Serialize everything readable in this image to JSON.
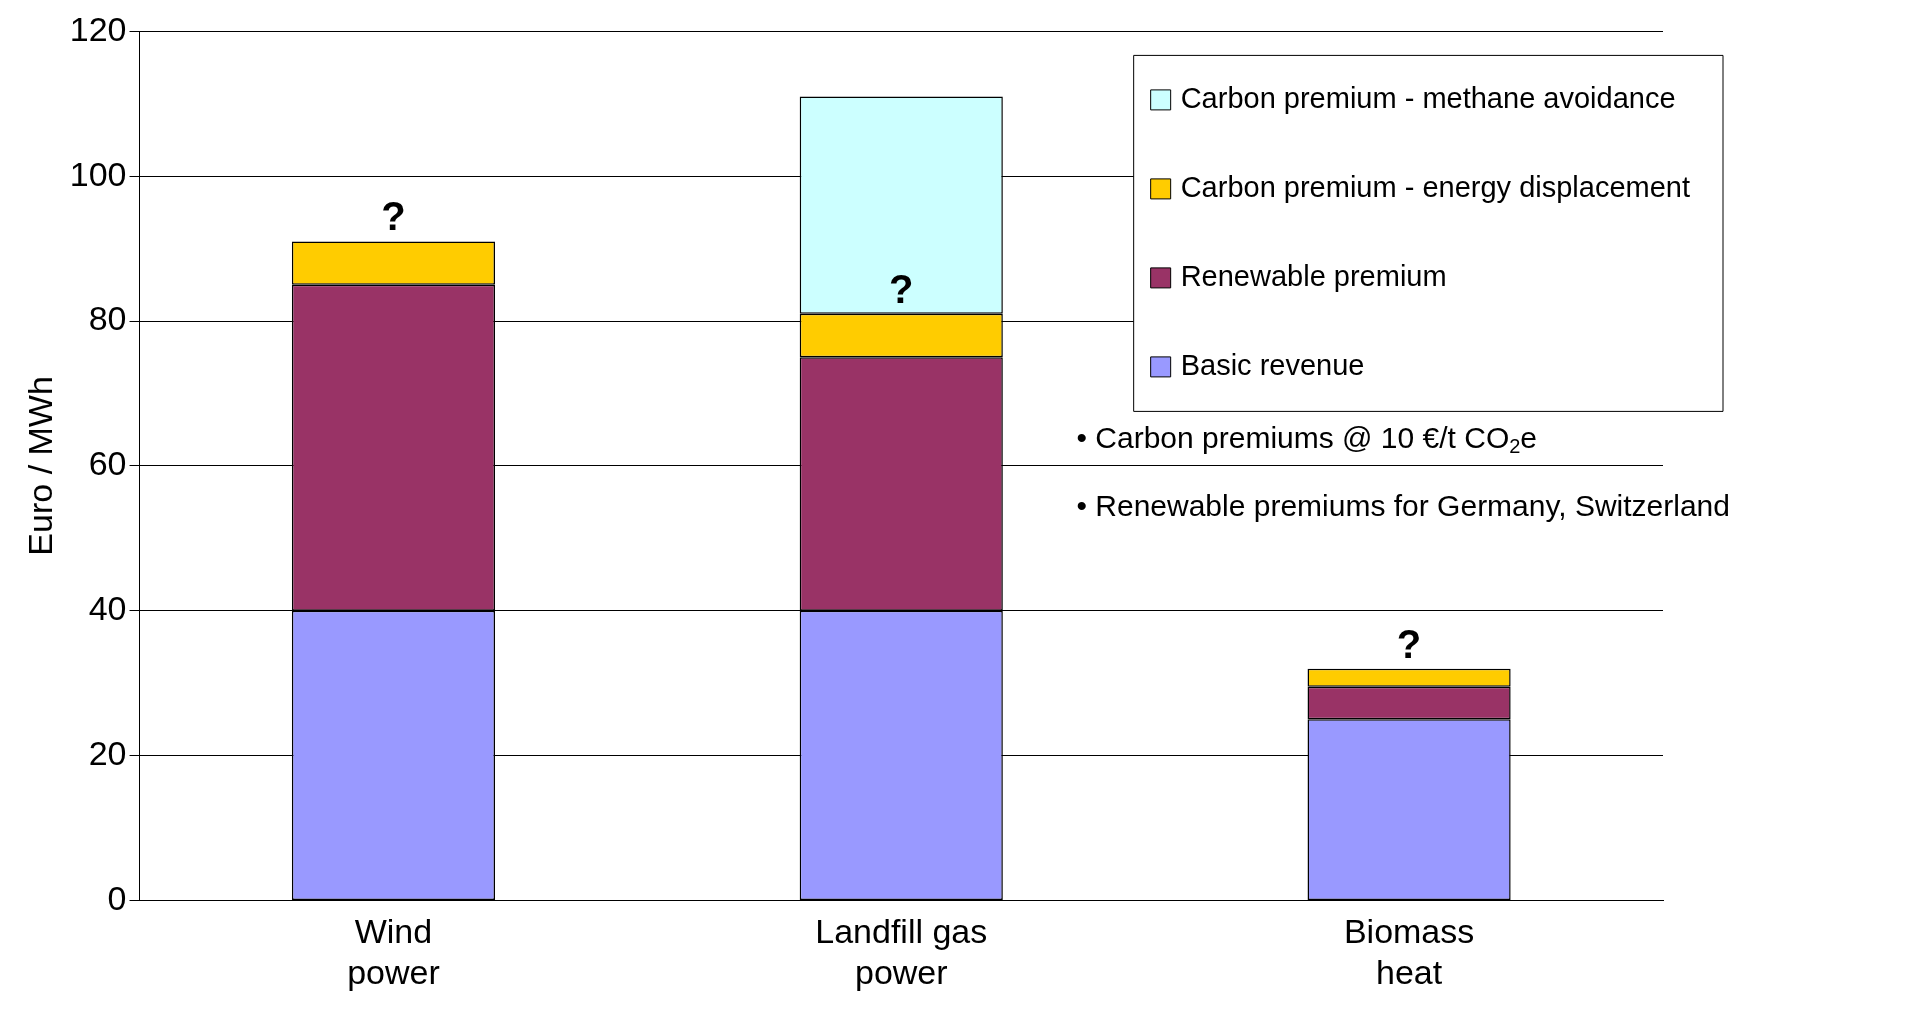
{
  "chart_data": {
    "type": "bar",
    "stacked": true,
    "ylabel": "Euro / MWh",
    "categories": [
      "Wind power",
      "Landfill gas power",
      "Biomass heat"
    ],
    "series": [
      {
        "name": "Basic revenue",
        "color": "#9999ff",
        "values": [
          40,
          40,
          25
        ]
      },
      {
        "name": "Renewable premium",
        "color": "#993366",
        "values": [
          45,
          35,
          4.5
        ]
      },
      {
        "name": "Carbon premium - energy displacement",
        "color": "#ffcc00",
        "values": [
          6,
          6,
          2.5
        ]
      },
      {
        "name": "Carbon premium - methane avoidance",
        "color": "#ccffff",
        "values": [
          null,
          30,
          null
        ]
      }
    ],
    "ylim": [
      0,
      120
    ],
    "yticks": [
      0,
      20,
      40,
      60,
      80,
      100,
      120
    ],
    "grid": "y",
    "legend": "top right",
    "annotations": [
      {
        "text": "?",
        "x": "Wind power",
        "y": 91
      },
      {
        "text": "?",
        "x": "Landfill gas power",
        "y": 81
      },
      {
        "text": "?",
        "x": "Biomass heat",
        "y": 32
      },
      "• Carbon premiums @ 10 €/t CO$_{2}$e",
      "• Renewable premiums for Germany, Switzerland"
    ]
  }
}
